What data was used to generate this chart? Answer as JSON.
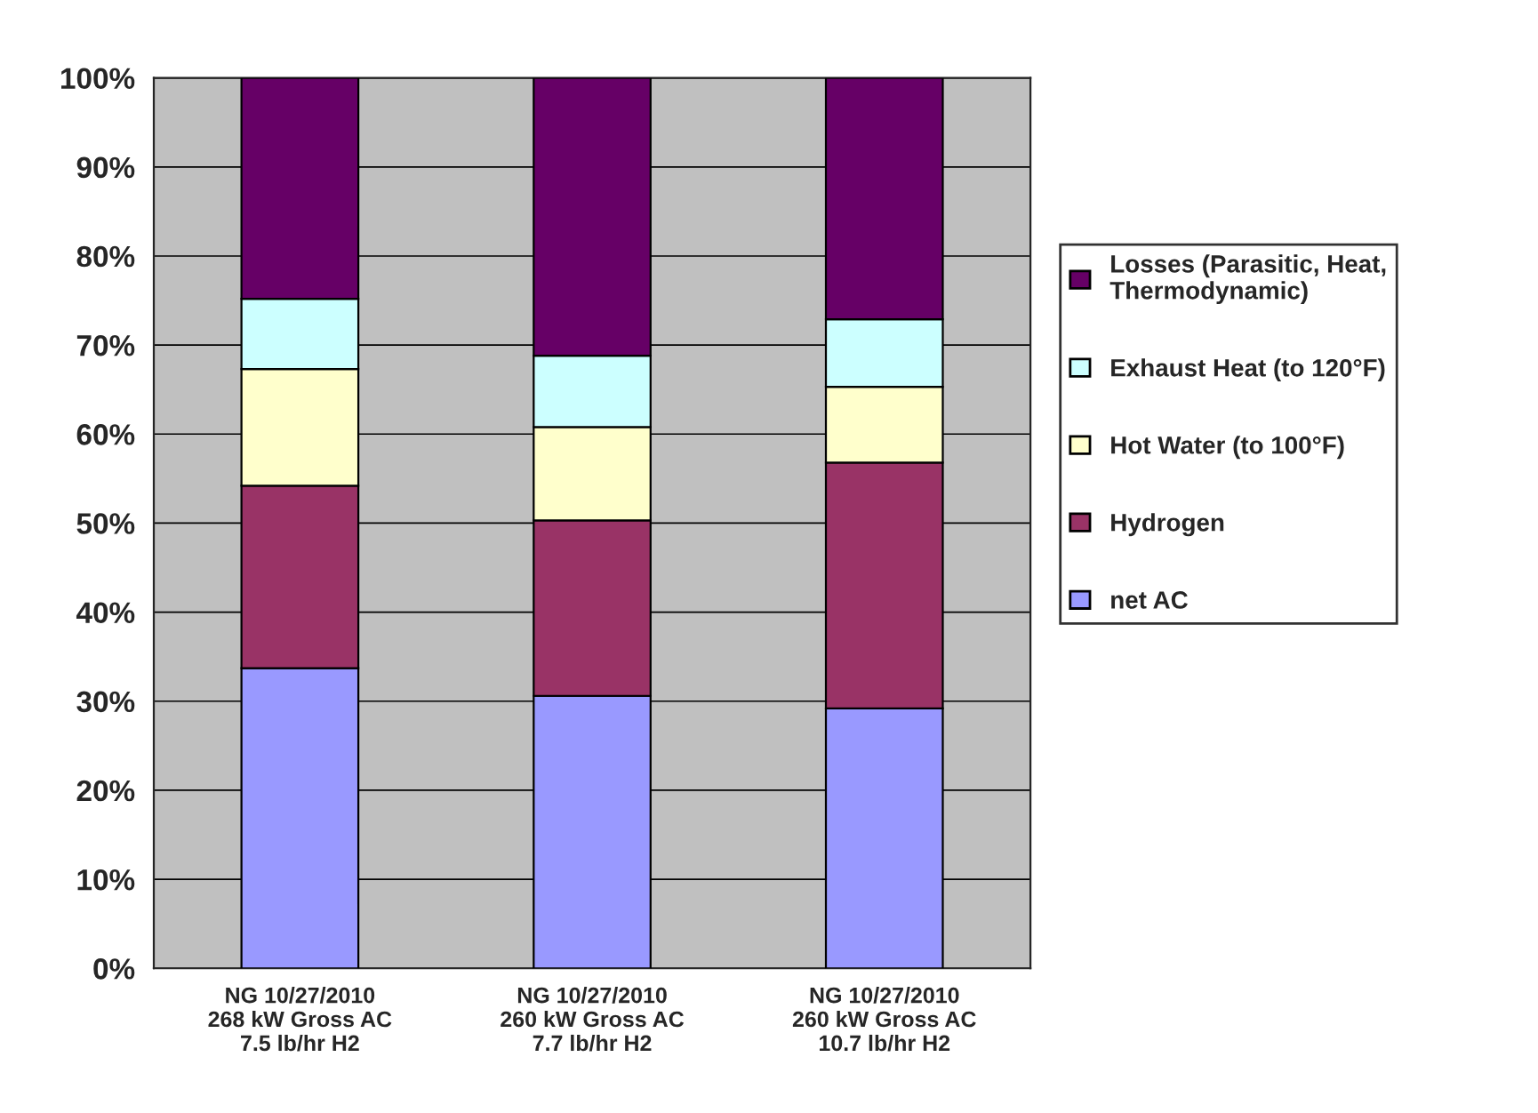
{
  "chart_data": {
    "type": "bar",
    "stacked": true,
    "categories": [
      "NG 10/27/2010\n268 kW Gross AC\n7.5 lb/hr H2",
      "NG 10/27/2010\n260 kW Gross AC\n7.7 lb/hr H2",
      "NG 10/27/2010\n260 kW Gross AC\n10.7 lb/hr H2"
    ],
    "series": [
      {
        "name": "net AC",
        "color": "#9999ff",
        "values": [
          33.7,
          30.6,
          29.2
        ]
      },
      {
        "name": "Hydrogen",
        "color": "#993366",
        "values": [
          20.5,
          19.7,
          27.6
        ]
      },
      {
        "name": "Hot Water (to 100°F)",
        "color": "#ffffcc",
        "values": [
          13.1,
          10.5,
          8.5
        ]
      },
      {
        "name": "Exhaust Heat (to 120°F)",
        "color": "#ccffff",
        "values": [
          7.9,
          8.0,
          7.6
        ]
      },
      {
        "name": "Losses (Parasitic, Heat, Thermodynamic)",
        "color": "#660066",
        "values": [
          24.8,
          31.2,
          27.1
        ]
      }
    ],
    "ylim": [
      0,
      100
    ],
    "yticks": [
      {
        "value": 0,
        "label": "0%"
      },
      {
        "value": 10,
        "label": "10%"
      },
      {
        "value": 20,
        "label": "20%"
      },
      {
        "value": 30,
        "label": "30%"
      },
      {
        "value": 40,
        "label": "40%"
      },
      {
        "value": 50,
        "label": "50%"
      },
      {
        "value": 60,
        "label": "60%"
      },
      {
        "value": 70,
        "label": "70%"
      },
      {
        "value": 80,
        "label": "80%"
      },
      {
        "value": 90,
        "label": "90%"
      },
      {
        "value": 100,
        "label": "100%"
      }
    ],
    "grid": "y",
    "legend": "right"
  }
}
